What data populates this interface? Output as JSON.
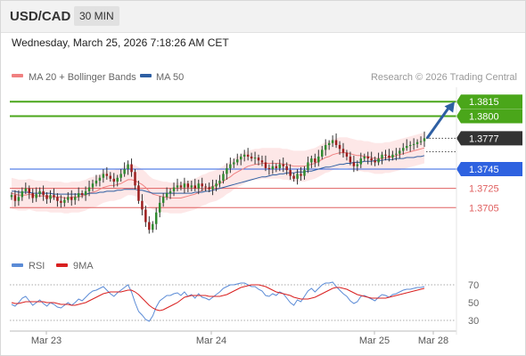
{
  "header": {
    "symbol": "USD/CAD",
    "timeframe": "30 MIN"
  },
  "datetime": "Wednesday, March 25, 2026 7:18:26 AM CET",
  "legend": {
    "items": [
      {
        "label": "MA 20 + Bollinger Bands",
        "color": "#f08080"
      },
      {
        "label": "MA 50",
        "color": "#2e5fa3"
      }
    ],
    "credit": "Research © 2026 Trading Central"
  },
  "rsi_legend": {
    "items": [
      {
        "label": "RSI",
        "color": "#5b8bd6"
      },
      {
        "label": "9MA",
        "color": "#d92020"
      }
    ]
  },
  "chart_data": [
    {
      "type": "candlestick",
      "title": "",
      "instrument": "USD/CAD",
      "timeframe": "30 MIN",
      "x_ticks": [
        "Mar 23",
        "Mar 24",
        "Mar 25",
        "Mar 28"
      ],
      "ylim": [
        1.366,
        1.383
      ],
      "grid": false,
      "price_levels": [
        {
          "label": "1.3815",
          "value": 1.3815,
          "color": "#4aa61a",
          "style": "solid",
          "badge": true
        },
        {
          "label": "1.3800",
          "value": 1.38,
          "color": "#4aa61a",
          "style": "solid",
          "badge": true
        },
        {
          "label": "1.3777",
          "value": 1.3777,
          "color": "#444444",
          "style": "dotted",
          "badge": true,
          "current": true
        },
        {
          "label": "1.3745",
          "value": 1.3745,
          "color": "#2e62e0",
          "style": "solid",
          "badge": true
        },
        {
          "label": "1.3725",
          "value": 1.3725,
          "color": "#e06060",
          "style": "solid",
          "badge": false
        },
        {
          "label": "1.3705",
          "value": 1.3705,
          "color": "#e06060",
          "style": "solid",
          "badge": false
        }
      ],
      "close": [
        1.3718,
        1.3712,
        1.3716,
        1.3722,
        1.3725,
        1.372,
        1.3715,
        1.3719,
        1.3722,
        1.3718,
        1.3714,
        1.3718,
        1.3716,
        1.3712,
        1.371,
        1.3713,
        1.3716,
        1.3713,
        1.3716,
        1.372,
        1.3718,
        1.3722,
        1.3726,
        1.373,
        1.3733,
        1.3736,
        1.374,
        1.3738,
        1.3735,
        1.3732,
        1.3736,
        1.374,
        1.3745,
        1.375,
        1.3742,
        1.3728,
        1.3712,
        1.3703,
        1.369,
        1.3682,
        1.3688,
        1.37,
        1.371,
        1.3716,
        1.372,
        1.3722,
        1.3726,
        1.3728,
        1.3726,
        1.373,
        1.3726,
        1.3728,
        1.3725,
        1.373,
        1.3727,
        1.3726,
        1.3724,
        1.3727,
        1.373,
        1.3733,
        1.374,
        1.3746,
        1.375,
        1.3752,
        1.3755,
        1.3758,
        1.376,
        1.3758,
        1.3756,
        1.3757,
        1.3754,
        1.3752,
        1.3746,
        1.3745,
        1.3748,
        1.3746,
        1.375,
        1.3748,
        1.3744,
        1.3738,
        1.3735,
        1.374,
        1.3738,
        1.3744,
        1.3752,
        1.3756,
        1.3752,
        1.3758,
        1.3765,
        1.377,
        1.3772,
        1.3775,
        1.377,
        1.3766,
        1.3762,
        1.3758,
        1.3752,
        1.3748,
        1.375,
        1.3756,
        1.3758,
        1.3756,
        1.3754,
        1.3752,
        1.3756,
        1.376,
        1.3759,
        1.3757,
        1.376,
        1.3761,
        1.3764,
        1.3767,
        1.3769,
        1.377,
        1.3771,
        1.3773,
        1.3774,
        1.3777
      ],
      "ma20": [
        1.372,
        1.3719,
        1.3718,
        1.3718,
        1.3718,
        1.3719,
        1.3718,
        1.3717,
        1.3717,
        1.3717,
        1.3717,
        1.3716,
        1.3716,
        1.3716,
        1.3716,
        1.3715,
        1.3715,
        1.3716,
        1.3716,
        1.3716,
        1.3717,
        1.3718,
        1.372,
        1.3721,
        1.3722,
        1.3724,
        1.3726,
        1.3727,
        1.3728,
        1.3728,
        1.3729,
        1.373,
        1.3732,
        1.3734,
        1.3734,
        1.3733,
        1.3731,
        1.3729,
        1.3726,
        1.3722,
        1.3719,
        1.3718,
        1.3717,
        1.3716,
        1.3716,
        1.3715,
        1.3715,
        1.3715,
        1.3715,
        1.3716,
        1.3717,
        1.3718,
        1.3719,
        1.3721,
        1.3723,
        1.3724,
        1.3726,
        1.3727,
        1.3728,
        1.373,
        1.3732,
        1.3735,
        1.3737,
        1.374,
        1.3742,
        1.3744,
        1.3746,
        1.3748,
        1.3749,
        1.375,
        1.375,
        1.3751,
        1.3751,
        1.3751,
        1.3751,
        1.3751,
        1.3751,
        1.375,
        1.375,
        1.3749,
        1.3748,
        1.3748,
        1.3748,
        1.3748,
        1.3749,
        1.375,
        1.3751,
        1.3753,
        1.3755,
        1.3757,
        1.3758,
        1.376,
        1.3761,
        1.3762,
        1.3762,
        1.3762,
        1.3761,
        1.376,
        1.3759,
        1.3759,
        1.3758,
        1.3758,
        1.3757,
        1.3756,
        1.3756,
        1.3756,
        1.3757,
        1.3757,
        1.3758,
        1.3759,
        1.376,
        1.3761,
        1.3762,
        1.3763,
        1.3764,
        1.3765,
        1.3766,
        1.3767
      ],
      "ma50": [
        1.3722,
        1.3722,
        1.3721,
        1.3721,
        1.3721,
        1.3721,
        1.372,
        1.372,
        1.372,
        1.372,
        1.372,
        1.372,
        1.3719,
        1.3719,
        1.3719,
        1.3719,
        1.3719,
        1.3719,
        1.3719,
        1.3719,
        1.3719,
        1.3719,
        1.372,
        1.372,
        1.372,
        1.3721,
        1.3721,
        1.3722,
        1.3722,
        1.3722,
        1.3723,
        1.3723,
        1.3724,
        1.3724,
        1.3724,
        1.3724,
        1.3723,
        1.3723,
        1.3722,
        1.3721,
        1.372,
        1.372,
        1.372,
        1.372,
        1.372,
        1.372,
        1.372,
        1.372,
        1.372,
        1.372,
        1.372,
        1.372,
        1.3721,
        1.3721,
        1.3721,
        1.3722,
        1.3722,
        1.3723,
        1.3724,
        1.3725,
        1.3726,
        1.3727,
        1.3728,
        1.3729,
        1.373,
        1.3731,
        1.3732,
        1.3733,
        1.3734,
        1.3735,
        1.3736,
        1.3737,
        1.3737,
        1.3738,
        1.3739,
        1.3739,
        1.374,
        1.374,
        1.3741,
        1.3741,
        1.3741,
        1.3742,
        1.3742,
        1.3742,
        1.3743,
        1.3743,
        1.3744,
        1.3745,
        1.3746,
        1.3747,
        1.3747,
        1.3748,
        1.3749,
        1.375,
        1.375,
        1.3751,
        1.3751,
        1.3752,
        1.3752,
        1.3752,
        1.3753,
        1.3753,
        1.3753,
        1.3754,
        1.3754,
        1.3754,
        1.3755,
        1.3755,
        1.3755,
        1.3756,
        1.3756,
        1.3756,
        1.3757,
        1.3757,
        1.3757,
        1.3758,
        1.3758,
        1.3759
      ],
      "bollinger_width": 0.0016,
      "forecast_arrow": {
        "from": 1.3777,
        "to": 1.3815,
        "color": "#2e5fa3"
      }
    },
    {
      "type": "line",
      "title": "",
      "series": [
        {
          "name": "RSI",
          "color": "#5b8bd6",
          "values": [
            48,
            46,
            50,
            55,
            57,
            52,
            47,
            50,
            53,
            49,
            46,
            50,
            48,
            45,
            44,
            47,
            50,
            47,
            50,
            54,
            52,
            56,
            60,
            63,
            64,
            66,
            68,
            64,
            60,
            57,
            61,
            64,
            67,
            70,
            62,
            50,
            40,
            36,
            31,
            29,
            35,
            45,
            52,
            55,
            58,
            58,
            60,
            61,
            58,
            62,
            57,
            59,
            55,
            60,
            56,
            55,
            53,
            56,
            59,
            62,
            66,
            68,
            70,
            70,
            71,
            72,
            72,
            70,
            68,
            68,
            65,
            63,
            58,
            57,
            60,
            58,
            62,
            60,
            55,
            50,
            47,
            53,
            51,
            57,
            63,
            66,
            62,
            66,
            70,
            72,
            72,
            73,
            68,
            64,
            60,
            57,
            52,
            49,
            51,
            57,
            58,
            56,
            54,
            52,
            56,
            59,
            58,
            56,
            59,
            60,
            62,
            64,
            65,
            65,
            66,
            67,
            67,
            68
          ]
        },
        {
          "name": "9MA",
          "color": "#d92020",
          "values": [
            50,
            49,
            49,
            50,
            51,
            51,
            51,
            51,
            51,
            51,
            50,
            50,
            50,
            49,
            48,
            48,
            48,
            47,
            47,
            48,
            49,
            50,
            52,
            54,
            56,
            58,
            60,
            61,
            62,
            62,
            62,
            62,
            63,
            64,
            64,
            62,
            59,
            55,
            51,
            47,
            44,
            42,
            41,
            42,
            44,
            46,
            48,
            50,
            53,
            56,
            57,
            58,
            58,
            58,
            58,
            58,
            57,
            57,
            57,
            57,
            58,
            59,
            61,
            63,
            65,
            67,
            68,
            69,
            70,
            70,
            70,
            69,
            68,
            66,
            64,
            62,
            61,
            60,
            59,
            58,
            56,
            55,
            54,
            54,
            54,
            55,
            56,
            58,
            60,
            62,
            64,
            66,
            67,
            67,
            66,
            65,
            63,
            61,
            59,
            58,
            57,
            56,
            55,
            55,
            55,
            55,
            55,
            56,
            57,
            58,
            59,
            60,
            61,
            62,
            63,
            64,
            65,
            66
          ]
        }
      ],
      "y_ticks": [
        70,
        50,
        30
      ],
      "reference_lines": [
        70,
        30
      ],
      "ylim": [
        20,
        80
      ]
    }
  ]
}
